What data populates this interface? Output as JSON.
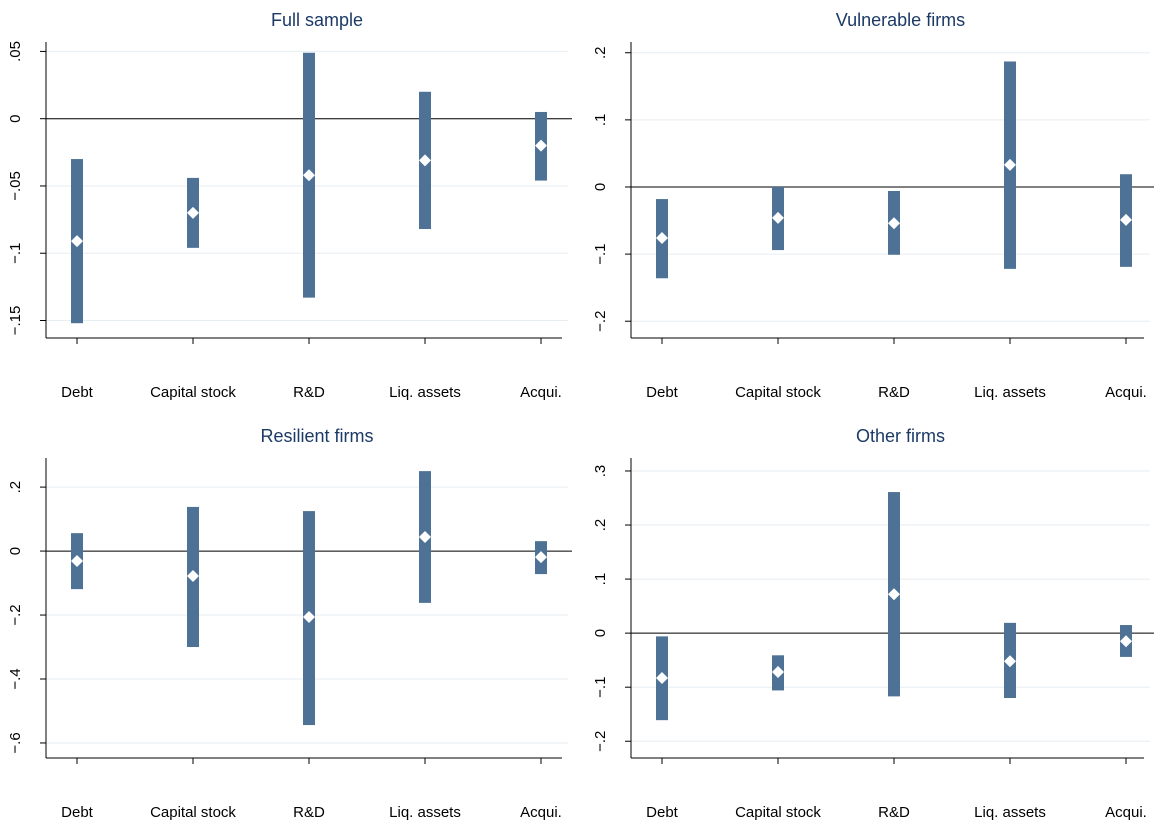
{
  "chart_data": [
    {
      "type": "interval",
      "title": "Full sample",
      "categories": [
        "Debt",
        "Capital stock",
        "R&D",
        "Liq. assets",
        "Acqui."
      ],
      "values": [
        -0.091,
        -0.07,
        -0.042,
        -0.031,
        -0.02
      ],
      "lower": [
        -0.152,
        -0.096,
        -0.133,
        -0.082,
        -0.046
      ],
      "upper": [
        -0.03,
        -0.044,
        0.049,
        0.02,
        0.005
      ],
      "color": "#4e7295",
      "marker_color": "#ffffff",
      "ylim": [
        -0.163,
        0.057
      ],
      "yticks": [
        {
          "value": -0.15,
          "label": "−.15"
        },
        {
          "value": -0.1,
          "label": "−.1"
        },
        {
          "value": -0.05,
          "label": "−.05"
        },
        0,
        {
          "value": 0.05,
          "label": ".05"
        }
      ],
      "grid": true
    },
    {
      "type": "interval",
      "title": "Vulnerable firms",
      "categories": [
        "Debt",
        "Capital stock",
        "R&D",
        "Liq. assets",
        "Acqui."
      ],
      "values": [
        -0.076,
        -0.046,
        -0.054,
        0.033,
        -0.049
      ],
      "lower": [
        -0.136,
        -0.094,
        -0.101,
        -0.122,
        -0.119
      ],
      "upper": [
        -0.018,
        0.0,
        -0.006,
        0.187,
        0.019
      ],
      "color": "#4e7295",
      "marker_color": "#ffffff",
      "ylim": [
        -0.225,
        0.216
      ],
      "yticks": [
        {
          "value": -0.2,
          "label": "−.2"
        },
        {
          "value": -0.1,
          "label": "−.1"
        },
        0,
        {
          "value": 0.1,
          "label": ".1"
        },
        {
          "value": 0.2,
          "label": ".2"
        }
      ],
      "grid": true
    },
    {
      "type": "interval",
      "title": "Resilient firms",
      "categories": [
        "Debt",
        "Capital stock",
        "R&D",
        "Liq. assets",
        "Acqui."
      ],
      "values": [
        -0.031,
        -0.078,
        -0.206,
        0.044,
        -0.019
      ],
      "lower": [
        -0.119,
        -0.3,
        -0.544,
        -0.162,
        -0.072
      ],
      "upper": [
        0.056,
        0.138,
        0.125,
        0.25,
        0.031
      ],
      "color": "#4e7295",
      "marker_color": "#ffffff",
      "ylim": [
        -0.647,
        0.291
      ],
      "yticks": [
        {
          "value": -0.6,
          "label": "−.6"
        },
        {
          "value": -0.4,
          "label": "−.4"
        },
        {
          "value": -0.2,
          "label": "−.2"
        },
        0,
        {
          "value": 0.2,
          "label": ".2"
        }
      ],
      "grid": true
    },
    {
      "type": "interval",
      "title": "Other firms",
      "categories": [
        "Debt",
        "Capital stock",
        "R&D",
        "Liq. assets",
        "Acqui."
      ],
      "values": [
        -0.083,
        -0.072,
        0.072,
        -0.052,
        -0.015
      ],
      "lower": [
        -0.161,
        -0.106,
        -0.117,
        -0.12,
        -0.044
      ],
      "upper": [
        -0.006,
        -0.041,
        0.261,
        0.019,
        0.015
      ],
      "color": "#4e7295",
      "marker_color": "#ffffff",
      "ylim": [
        -0.231,
        0.324
      ],
      "yticks": [
        {
          "value": -0.2,
          "label": "−.2"
        },
        {
          "value": -0.1,
          "label": "−.1"
        },
        0,
        {
          "value": 0.1,
          "label": ".1"
        },
        {
          "value": 0.2,
          "label": ".2"
        },
        {
          "value": 0.3,
          "label": ".3"
        }
      ],
      "grid": true
    }
  ]
}
